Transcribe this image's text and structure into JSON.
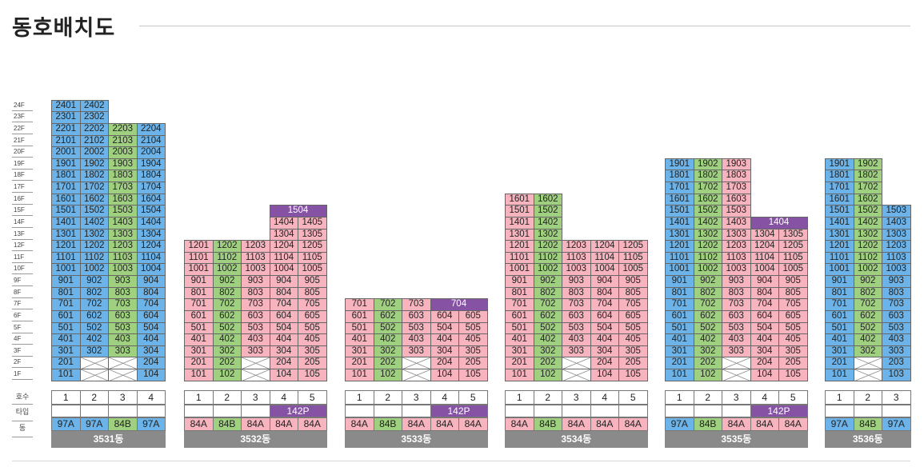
{
  "page": {
    "title": "동호배치도"
  },
  "floor_labels": [
    "24F",
    "23F",
    "22F",
    "21F",
    "20F",
    "19F",
    "18F",
    "17F",
    "16F",
    "15F",
    "14F",
    "13F",
    "12F",
    "11F",
    "10F",
    "9F",
    "8F",
    "7F",
    "6F",
    "5F",
    "4F",
    "3F",
    "2F",
    "1F"
  ],
  "row_labels": {
    "unit": "호수",
    "type": "타입",
    "building": "동"
  },
  "colors": {
    "blue": "#6bb3e8",
    "green": "#9fd07f",
    "pink": "#f7b4bf",
    "purple": "#8552a4",
    "white": "#ffffff",
    "gray": "#8a8a8a"
  },
  "buildings": [
    {
      "name": "3531동",
      "cols": 4,
      "color_rows": [
        [],
        [],
        [],
        [],
        [],
        [],
        [],
        [],
        [],
        [],
        [],
        [],
        [],
        [],
        [],
        [],
        [],
        [],
        [],
        [],
        [],
        [],
        [
          "blue",
          "empty",
          "empty",
          "blue"
        ],
        [
          "blue",
          "empty",
          "empty",
          "blue"
        ]
      ],
      "top_floors": [
        24,
        24,
        22,
        22
      ],
      "col_colors": [
        "blue",
        "blue",
        "green",
        "blue"
      ],
      "partial": {
        "2": [
          0,
          3
        ],
        "1": [
          0,
          3
        ]
      },
      "special": {},
      "unit_numbers": [
        "1",
        "2",
        "3",
        "4"
      ],
      "types": [
        "97A",
        "97A",
        "84B",
        "97A"
      ],
      "type_colors": [
        "blue",
        "blue",
        "green",
        "blue"
      ],
      "header_purple": null
    },
    {
      "name": "3532동",
      "cols": 5,
      "top_floors": [
        12,
        12,
        12,
        15,
        14
      ],
      "col_colors": [
        "pink",
        "green",
        "pink",
        "pink",
        "pink"
      ],
      "partial": {
        "2": [
          0,
          1,
          3,
          4
        ],
        "1": [
          0,
          1,
          3,
          4
        ]
      },
      "special": {
        "15": {
          "label": "1504",
          "span": [
            3,
            4
          ]
        }
      },
      "unit_numbers": [
        "1",
        "2",
        "3",
        "4",
        "5"
      ],
      "types": [
        "84A",
        "84B",
        "84A",
        "84A",
        "84A"
      ],
      "type_colors": [
        "pink",
        "green",
        "pink",
        "pink",
        "pink"
      ],
      "header_purple": {
        "label": "142P",
        "span": [
          3,
          4
        ]
      }
    },
    {
      "name": "3533동",
      "cols": 5,
      "top_floors": [
        7,
        7,
        7,
        7,
        6
      ],
      "col_colors": [
        "pink",
        "green",
        "pink",
        "pink",
        "pink"
      ],
      "partial": {
        "2": [
          0,
          1,
          3,
          4
        ],
        "1": [
          0,
          1,
          3,
          4
        ]
      },
      "special": {
        "7": {
          "label": "704",
          "span": [
            3,
            4
          ]
        }
      },
      "unit_numbers": [
        "1",
        "2",
        "3",
        "4",
        "5"
      ],
      "types": [
        "84A",
        "84B",
        "84A",
        "84A",
        "84A"
      ],
      "type_colors": [
        "pink",
        "green",
        "pink",
        "pink",
        "pink"
      ],
      "header_purple": {
        "label": "142P",
        "span": [
          3,
          4
        ]
      }
    },
    {
      "name": "3534동",
      "cols": 5,
      "top_floors": [
        16,
        16,
        12,
        12,
        12
      ],
      "col_colors": [
        "pink",
        "green",
        "pink",
        "pink",
        "pink"
      ],
      "partial": {
        "2": [
          0,
          1,
          3,
          4
        ],
        "1": [
          0,
          1,
          3,
          4
        ]
      },
      "special": {},
      "unit_numbers": [
        "1",
        "2",
        "3",
        "4",
        "5"
      ],
      "types": [
        "84A",
        "84B",
        "84A",
        "84A",
        "84A"
      ],
      "type_colors": [
        "pink",
        "green",
        "pink",
        "pink",
        "pink"
      ],
      "header_purple": null
    },
    {
      "name": "3535동",
      "cols": 5,
      "top_floors": [
        19,
        19,
        19,
        14,
        13
      ],
      "col_colors": [
        "blue",
        "green",
        "pink",
        "pink",
        "pink"
      ],
      "partial": {
        "2": [
          0,
          1,
          3,
          4
        ],
        "1": [
          0,
          1,
          3,
          4
        ]
      },
      "special": {
        "14": {
          "label": "1404",
          "span": [
            3,
            4
          ]
        }
      },
      "unit_numbers": [
        "1",
        "2",
        "3",
        "4",
        "5"
      ],
      "types": [
        "97A",
        "84B",
        "84A",
        "84A",
        "84A"
      ],
      "type_colors": [
        "blue",
        "green",
        "pink",
        "pink",
        "pink"
      ],
      "header_purple": {
        "label": "142P",
        "span": [
          3,
          4
        ]
      }
    },
    {
      "name": "3536동",
      "cols": 3,
      "top_floors": [
        19,
        19,
        15
      ],
      "col_colors": [
        "blue",
        "green",
        "blue"
      ],
      "partial": {
        "2": [
          0,
          2
        ],
        "1": [
          0,
          2
        ]
      },
      "special": {},
      "unit_numbers": [
        "1",
        "2",
        "3"
      ],
      "types": [
        "97A",
        "84B",
        "97A"
      ],
      "type_colors": [
        "blue",
        "green",
        "blue"
      ],
      "header_purple": null
    }
  ]
}
